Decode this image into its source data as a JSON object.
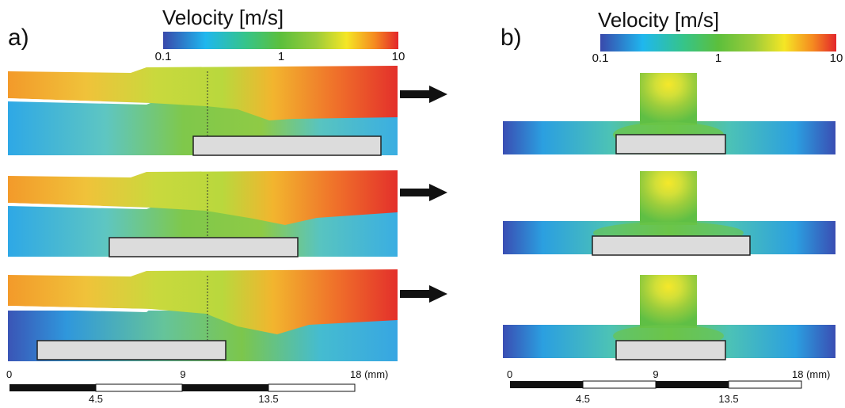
{
  "panels": [
    {
      "label": "a)",
      "colorbar": {
        "title": "Velocity [m/s]",
        "ticks": [
          "0.1",
          "1",
          "10"
        ],
        "colors": [
          "#3949ab",
          "#1fb7ee",
          "#35c48a",
          "#5cbf3c",
          "#9ccc3a",
          "#f5e625",
          "#f58a20",
          "#e3262b"
        ]
      },
      "scale_bar": {
        "top_ticks": [
          "0",
          "9",
          "18 (mm)"
        ],
        "bottom_ticks": [
          "4.5",
          "13.5"
        ]
      }
    },
    {
      "label": "b)",
      "colorbar": {
        "title": "Velocity [m/s]",
        "ticks": [
          "0.1",
          "1",
          "10"
        ],
        "colors": [
          "#3949ab",
          "#1fb7ee",
          "#35c48a",
          "#5cbf3c",
          "#9ccc3a",
          "#f5e625",
          "#f58a20",
          "#e3262b"
        ]
      },
      "scale_bar": {
        "top_ticks": [
          "0",
          "9",
          "18 (mm)"
        ],
        "bottom_ticks": [
          "4.5",
          "13.5"
        ]
      }
    }
  ],
  "field_colors": {
    "low": "#3b4eb0",
    "cyan": "#2fb8e6",
    "teal": "#4cc3a4",
    "green": "#6cc24a",
    "yellowgreen": "#b8d93a",
    "yellow": "#eaea3a",
    "orange": "#f39a2a",
    "red": "#e5372b",
    "block": "#dcdcdc"
  }
}
